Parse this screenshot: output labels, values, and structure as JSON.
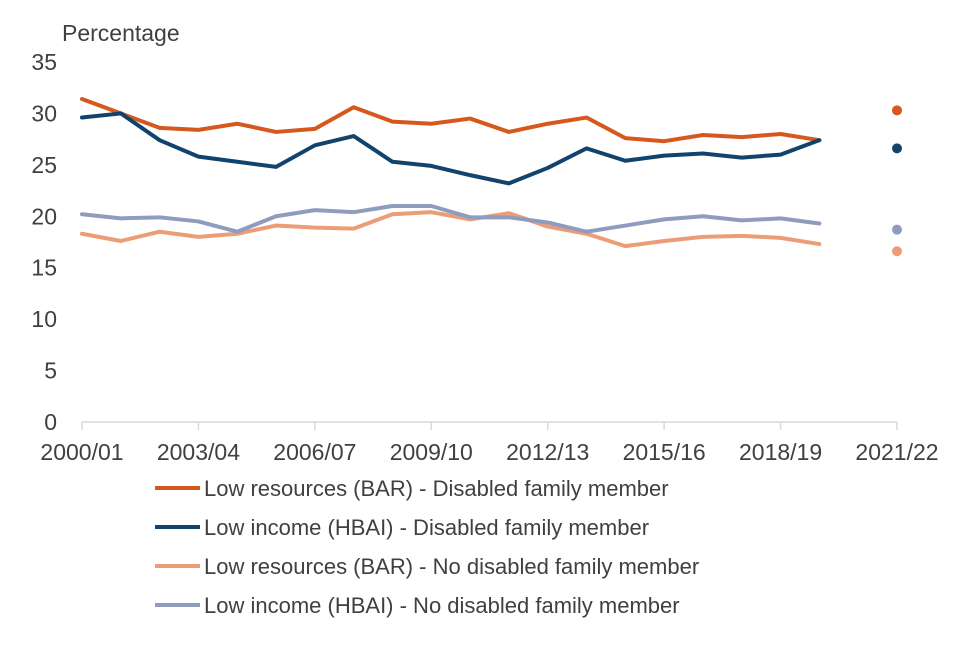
{
  "chart_data": {
    "type": "line",
    "ylabel": "Percentage",
    "ylim": [
      0,
      35
    ],
    "yticks": [
      0,
      5,
      10,
      15,
      20,
      25,
      30,
      35
    ],
    "x": [
      "2000/01",
      "2001/02",
      "2002/03",
      "2003/04",
      "2004/05",
      "2005/06",
      "2006/07",
      "2007/08",
      "2008/09",
      "2009/10",
      "2010/11",
      "2011/12",
      "2012/13",
      "2013/14",
      "2014/15",
      "2015/16",
      "2016/17",
      "2017/18",
      "2018/19",
      "2019/20",
      "2020/21",
      "2021/22"
    ],
    "xtick_labels": [
      "2000/01",
      "2003/04",
      "2006/07",
      "2009/10",
      "2012/13",
      "2015/16",
      "2018/19",
      "2021/22"
    ],
    "grid": false,
    "legend_position": "bottom",
    "series": [
      {
        "name": "Low resources (BAR) - Disabled family member",
        "color": "#D5581D",
        "values": [
          31.4,
          30.0,
          28.6,
          28.4,
          29.0,
          28.2,
          28.5,
          30.6,
          29.2,
          29.0,
          29.5,
          28.2,
          29.0,
          29.6,
          27.6,
          27.3,
          27.9,
          27.7,
          28.0,
          27.4,
          null,
          30.3
        ]
      },
      {
        "name": "Low income (HBAI) - Disabled family member",
        "color": "#12436D",
        "values": [
          29.6,
          30.0,
          27.4,
          25.8,
          25.3,
          24.8,
          26.9,
          27.8,
          25.3,
          24.9,
          24.0,
          23.2,
          24.7,
          26.6,
          25.4,
          25.9,
          26.1,
          25.7,
          26.0,
          27.4,
          null,
          26.6
        ]
      },
      {
        "name": "Low resources (BAR) - No disabled family member",
        "color": "#EC9D78",
        "values": [
          18.3,
          17.6,
          18.5,
          18.0,
          18.3,
          19.1,
          18.9,
          18.8,
          20.2,
          20.4,
          19.7,
          20.3,
          19.0,
          18.3,
          17.1,
          17.6,
          18.0,
          18.1,
          17.9,
          17.3,
          null,
          16.6
        ]
      },
      {
        "name": "Low income (HBAI) - No disabled family member",
        "color": "#8E9DBE",
        "values": [
          20.2,
          19.8,
          19.9,
          19.5,
          18.5,
          20.0,
          20.6,
          20.4,
          21.0,
          21.0,
          19.9,
          19.9,
          19.4,
          18.5,
          19.1,
          19.7,
          20.0,
          19.6,
          19.8,
          19.3,
          null,
          18.7
        ]
      }
    ]
  }
}
